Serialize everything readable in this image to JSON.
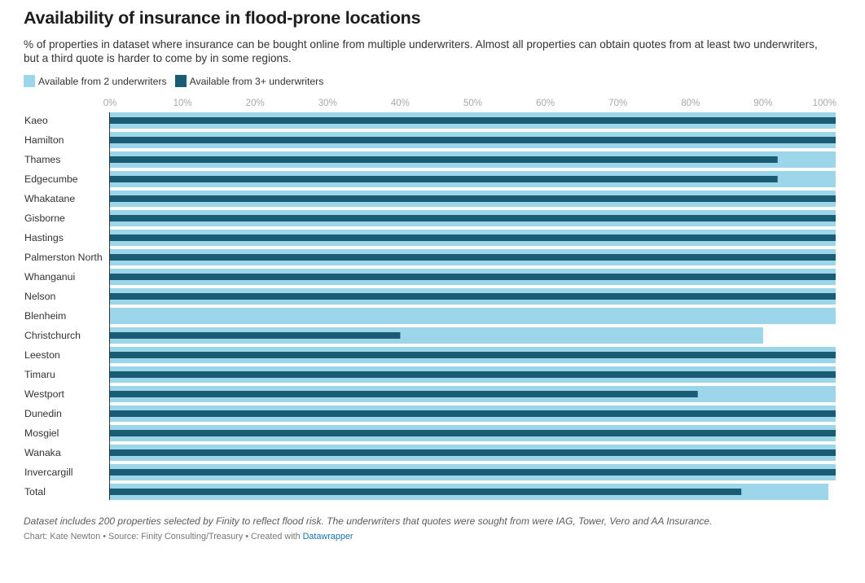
{
  "colors": {
    "two_underwriters": "#9dd6ea",
    "three_plus_underwriters": "#1b5c75",
    "axis": "#333333",
    "tick_text": "#a8a8a8"
  },
  "chart_data": {
    "type": "bar",
    "title": "Availability of insurance in flood-prone locations",
    "subtitle": "% of properties in dataset where insurance can be bought online from multiple underwriters. Almost all properties can obtain quotes from at least two underwriters, but a third quote is harder to come by in some regions.",
    "xlim": [
      0,
      100
    ],
    "ticks": [
      "0%",
      "10%",
      "20%",
      "30%",
      "40%",
      "50%",
      "60%",
      "70%",
      "80%",
      "90%",
      "100%"
    ],
    "categories": [
      "Kaeo",
      "Hamilton",
      "Thames",
      "Edgecumbe",
      "Whakatane",
      "Gisborne",
      "Hastings",
      "Palmerston North",
      "Whanganui",
      "Nelson",
      "Blenheim",
      "Christchurch",
      "Leeston",
      "Timaru",
      "Westport",
      "Dunedin",
      "Mosgiel",
      "Wanaka",
      "Invercargill",
      "Total"
    ],
    "series": [
      {
        "name": "Available from 2 underwriters",
        "values": [
          100,
          100,
          100,
          100,
          100,
          100,
          100,
          100,
          100,
          100,
          100,
          90,
          100,
          100,
          100,
          100,
          100,
          100,
          100,
          99
        ]
      },
      {
        "name": "Available from 3+ underwriters",
        "values": [
          100,
          100,
          92,
          92,
          100,
          100,
          100,
          100,
          100,
          100,
          0,
          40,
          100,
          100,
          81,
          100,
          100,
          100,
          100,
          87
        ]
      }
    ]
  },
  "notes": "Dataset includes 200 properties selected by Finity to reflect flood risk. The underwriters that quotes were sought from were IAG, Tower, Vero and AA Insurance.",
  "byline": {
    "text": "Chart: Kate Newton • Source: Finity Consulting/Treasury • Created with",
    "link": "Datawrapper"
  }
}
